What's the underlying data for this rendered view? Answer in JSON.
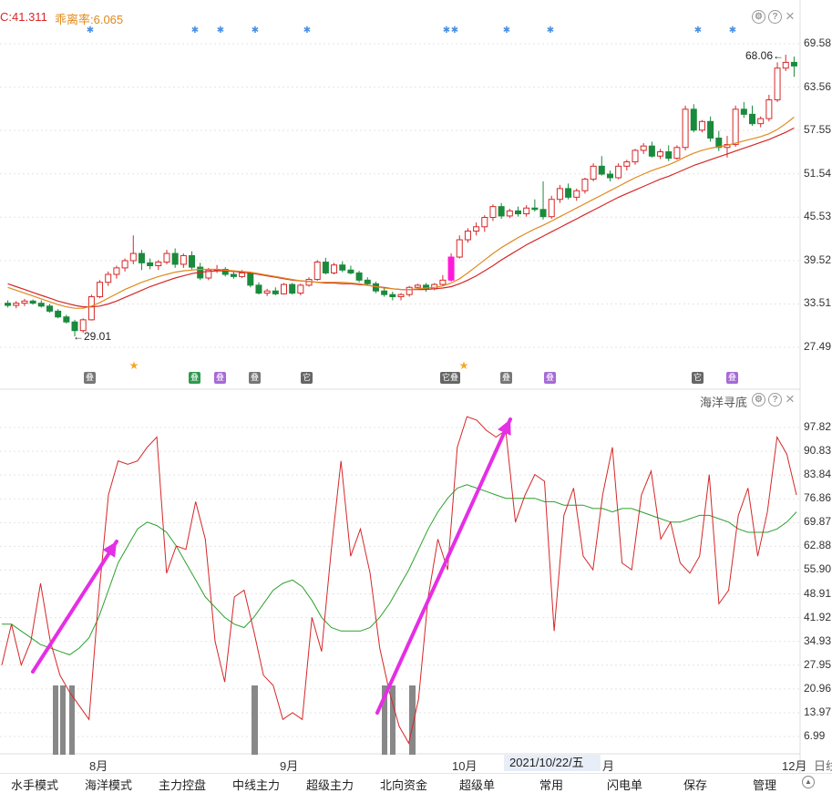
{
  "header": {
    "indicator_c": "C:41.311",
    "deviation": "乖离率:6.065",
    "lower_title": "海洋寻底"
  },
  "upper_axis": {
    "ticks": [
      "69.58",
      "63.56",
      "57.55",
      "51.54",
      "45.53",
      "39.52",
      "33.51",
      "27.49"
    ],
    "values": [
      69.58,
      63.56,
      57.55,
      51.54,
      45.53,
      39.52,
      33.51,
      27.49
    ]
  },
  "lower_axis": {
    "ticks": [
      "97.82",
      "90.83",
      "83.84",
      "76.86",
      "69.87",
      "62.88",
      "55.90",
      "48.91",
      "41.92",
      "34.93",
      "27.95",
      "20.96",
      "13.97",
      "6.99"
    ],
    "values": [
      97.82,
      90.83,
      83.84,
      76.86,
      69.87,
      62.88,
      55.9,
      48.91,
      41.92,
      34.93,
      27.95,
      20.96,
      13.97,
      6.99
    ]
  },
  "x_axis": {
    "labels": [
      "8月",
      "9月",
      "10月",
      "月",
      "12月",
      "日线"
    ],
    "current_date": "2021/10/22/五"
  },
  "annotations": {
    "high": "68.06",
    "low": "29.01",
    "high_arrow": "←",
    "low_arrow": "←"
  },
  "event_badges": [
    {
      "text": "叠",
      "color": "#777777"
    },
    {
      "text": "叠",
      "color": "#2e9a4f"
    },
    {
      "text": "叠",
      "color": "#a66ad6"
    },
    {
      "text": "叠",
      "color": "#777777"
    },
    {
      "text": "它",
      "color": "#666666"
    },
    {
      "text": "它叠",
      "color": "#666666"
    },
    {
      "text": "叠",
      "color": "#777777"
    },
    {
      "text": "叠",
      "color": "#a66ad6"
    },
    {
      "text": "它",
      "color": "#666666"
    },
    {
      "text": "叠",
      "color": "#a66ad6"
    }
  ],
  "tabs": [
    "水手模式",
    "海洋模式",
    "主力控盘",
    "中线主力",
    "超级主力",
    "北向资金",
    "超级单",
    "常用",
    "闪电单",
    "保存",
    "管理"
  ],
  "icons": {
    "settings": "gear-icon",
    "help": "help-icon",
    "close": "close-icon",
    "star": "star-icon",
    "snowflake": "snowflake-icon"
  },
  "colors": {
    "up": "#d62728",
    "down": "#1a8a3c",
    "ma_fast": "#e08a1e",
    "ma_slow": "#d62728",
    "osc": "#d62728",
    "osc_ma": "#2ca02c",
    "arrow": "#e52ee5",
    "bars": "#888888"
  },
  "chart_data": [
    {
      "type": "candlestick",
      "y_range": [
        27.49,
        69.58
      ],
      "candles": [
        [
          33.6,
          34.0,
          33.0,
          33.3
        ],
        [
          33.3,
          33.9,
          32.9,
          33.6
        ],
        [
          33.6,
          34.2,
          33.2,
          33.9
        ],
        [
          33.9,
          34.1,
          33.4,
          33.6
        ],
        [
          33.6,
          34.0,
          33.0,
          33.2
        ],
        [
          33.2,
          33.5,
          32.3,
          32.5
        ],
        [
          32.5,
          32.8,
          31.5,
          31.7
        ],
        [
          31.7,
          32.0,
          30.8,
          31.0
        ],
        [
          31.0,
          31.3,
          29.0,
          29.8
        ],
        [
          29.8,
          31.5,
          29.5,
          31.3
        ],
        [
          31.3,
          34.8,
          31.2,
          34.5
        ],
        [
          34.5,
          36.8,
          34.3,
          36.5
        ],
        [
          36.5,
          38.0,
          36.0,
          37.6
        ],
        [
          37.6,
          38.8,
          37.0,
          38.5
        ],
        [
          38.5,
          39.8,
          38.0,
          39.5
        ],
        [
          39.5,
          43.0,
          39.0,
          40.5
        ],
        [
          40.5,
          41.0,
          38.2,
          39.2
        ],
        [
          39.2,
          39.8,
          38.3,
          38.8
        ],
        [
          38.8,
          39.6,
          38.2,
          39.3
        ],
        [
          39.3,
          41.0,
          39.0,
          40.5
        ],
        [
          40.5,
          41.2,
          38.5,
          39.0
        ],
        [
          39.0,
          40.5,
          38.5,
          40.2
        ],
        [
          40.2,
          40.8,
          38.3,
          38.6
        ],
        [
          38.6,
          39.2,
          36.8,
          37.1
        ],
        [
          37.1,
          38.5,
          36.8,
          38.2
        ],
        [
          38.2,
          38.9,
          37.8,
          38.3
        ],
        [
          38.3,
          38.6,
          37.3,
          37.6
        ],
        [
          37.6,
          38.1,
          37.0,
          37.3
        ],
        [
          37.3,
          38.2,
          37.1,
          37.8
        ],
        [
          37.8,
          38.0,
          35.8,
          36.1
        ],
        [
          36.1,
          36.5,
          34.8,
          35.0
        ],
        [
          35.0,
          35.6,
          34.6,
          35.3
        ],
        [
          35.3,
          35.8,
          34.7,
          34.9
        ],
        [
          34.9,
          36.4,
          34.8,
          36.2
        ],
        [
          36.2,
          36.4,
          34.8,
          35.0
        ],
        [
          35.0,
          36.3,
          34.7,
          36.1
        ],
        [
          36.1,
          37.2,
          35.9,
          36.9
        ],
        [
          36.9,
          39.6,
          36.7,
          39.3
        ],
        [
          39.3,
          39.9,
          37.6,
          37.8
        ],
        [
          37.8,
          39.2,
          37.6,
          38.9
        ],
        [
          38.9,
          39.4,
          37.9,
          38.2
        ],
        [
          38.2,
          38.8,
          37.6,
          37.8
        ],
        [
          37.8,
          38.1,
          36.5,
          36.8
        ],
        [
          36.8,
          37.2,
          36.0,
          36.3
        ],
        [
          36.3,
          36.6,
          35.0,
          35.3
        ],
        [
          35.3,
          35.7,
          34.5,
          34.8
        ],
        [
          34.8,
          35.2,
          34.0,
          34.5
        ],
        [
          34.5,
          35.0,
          34.0,
          34.8
        ],
        [
          34.8,
          36.0,
          34.5,
          35.8
        ],
        [
          35.8,
          36.3,
          35.5,
          36.1
        ],
        [
          36.1,
          36.4,
          35.2,
          35.6
        ],
        [
          35.6,
          36.4,
          35.4,
          36.2
        ],
        [
          36.2,
          37.5,
          36.0,
          36.8
        ],
        [
          36.8,
          40.5,
          36.6,
          40.0
        ],
        [
          40.0,
          43.0,
          39.8,
          42.4
        ],
        [
          42.4,
          44.0,
          42.0,
          43.6
        ],
        [
          43.6,
          44.8,
          43.0,
          44.2
        ],
        [
          44.2,
          45.8,
          43.5,
          45.5
        ],
        [
          45.5,
          47.3,
          45.0,
          47.0
        ],
        [
          47.0,
          47.5,
          45.3,
          45.7
        ],
        [
          45.7,
          46.7,
          45.4,
          46.4
        ],
        [
          46.4,
          47.0,
          45.6,
          46.0
        ],
        [
          46.0,
          47.2,
          45.6,
          46.8
        ],
        [
          46.8,
          48.0,
          46.3,
          46.6
        ],
        [
          46.6,
          50.5,
          45.2,
          45.6
        ],
        [
          45.6,
          48.5,
          45.3,
          48.0
        ],
        [
          48.0,
          50.0,
          47.5,
          49.5
        ],
        [
          49.5,
          50.2,
          48.0,
          48.3
        ],
        [
          48.3,
          49.5,
          47.8,
          49.2
        ],
        [
          49.2,
          51.0,
          48.8,
          50.8
        ],
        [
          50.8,
          53.0,
          50.5,
          52.6
        ],
        [
          52.6,
          54.0,
          51.3,
          51.5
        ],
        [
          51.5,
          52.0,
          50.5,
          51.0
        ],
        [
          51.0,
          53.0,
          50.8,
          52.6
        ],
        [
          52.6,
          53.5,
          52.0,
          53.2
        ],
        [
          53.2,
          55.0,
          52.8,
          54.8
        ],
        [
          54.8,
          55.8,
          54.3,
          55.4
        ],
        [
          55.4,
          56.0,
          53.8,
          54.0
        ],
        [
          54.0,
          55.0,
          53.6,
          54.6
        ],
        [
          54.6,
          55.5,
          53.3,
          53.7
        ],
        [
          53.7,
          55.5,
          53.5,
          55.2
        ],
        [
          55.2,
          61.0,
          54.8,
          60.5
        ],
        [
          60.5,
          61.2,
          57.3,
          57.6
        ],
        [
          57.6,
          59.0,
          57.3,
          58.8
        ],
        [
          58.8,
          59.5,
          56.0,
          56.5
        ],
        [
          56.5,
          57.5,
          54.7,
          55.2
        ],
        [
          55.2,
          56.8,
          53.8,
          55.6
        ],
        [
          55.6,
          61.0,
          55.3,
          60.5
        ],
        [
          60.5,
          61.5,
          59.3,
          59.8
        ],
        [
          59.8,
          61.0,
          58.2,
          58.5
        ],
        [
          58.5,
          59.5,
          58.0,
          59.2
        ],
        [
          59.2,
          62.5,
          58.8,
          61.8
        ],
        [
          61.8,
          67.0,
          61.5,
          66.2
        ],
        [
          66.2,
          68.06,
          65.8,
          67.0
        ],
        [
          67.0,
          67.8,
          65.0,
          66.5
        ]
      ],
      "ma_fast": [
        35.8,
        35.4,
        35.0,
        34.6,
        34.2,
        33.8,
        33.4,
        33.1,
        32.9,
        32.9,
        33.2,
        33.7,
        34.3,
        34.9,
        35.5,
        36.0,
        36.5,
        36.9,
        37.3,
        37.6,
        37.9,
        38.1,
        38.2,
        38.3,
        38.3,
        38.3,
        38.2,
        38.1,
        38.0,
        37.9,
        37.7,
        37.5,
        37.3,
        37.1,
        36.9,
        36.7,
        36.6,
        36.5,
        36.5,
        36.5,
        36.5,
        36.4,
        36.3,
        36.1,
        35.9,
        35.7,
        35.6,
        35.5,
        35.5,
        35.6,
        35.7,
        35.8,
        36.0,
        36.4,
        37.0,
        37.8,
        38.7,
        39.6,
        40.5,
        41.3,
        42.0,
        42.7,
        43.3,
        43.9,
        44.4,
        45.0,
        45.6,
        46.2,
        46.8,
        47.4,
        48.0,
        48.6,
        49.2,
        49.8,
        50.4,
        51.0,
        51.5,
        52.0,
        52.4,
        52.8,
        53.3,
        53.9,
        54.4,
        54.8,
        55.1,
        55.3,
        55.5,
        55.8,
        56.1,
        56.4,
        56.7,
        57.1,
        57.7,
        58.5,
        59.4
      ],
      "ma_slow": [
        36.3,
        35.9,
        35.5,
        35.1,
        34.7,
        34.3,
        33.9,
        33.6,
        33.3,
        33.1,
        33.1,
        33.2,
        33.5,
        33.9,
        34.4,
        34.9,
        35.4,
        35.9,
        36.3,
        36.7,
        37.1,
        37.4,
        37.7,
        37.9,
        38.0,
        38.1,
        38.1,
        38.0,
        37.9,
        37.8,
        37.6,
        37.4,
        37.2,
        37.0,
        36.8,
        36.7,
        36.6,
        36.5,
        36.4,
        36.4,
        36.3,
        36.3,
        36.2,
        36.1,
        35.9,
        35.8,
        35.6,
        35.5,
        35.5,
        35.5,
        35.5,
        35.6,
        35.7,
        35.9,
        36.3,
        36.8,
        37.4,
        38.1,
        38.8,
        39.6,
        40.3,
        41.0,
        41.7,
        42.3,
        42.9,
        43.5,
        44.1,
        44.7,
        45.3,
        45.9,
        46.5,
        47.1,
        47.7,
        48.3,
        48.8,
        49.3,
        49.8,
        50.3,
        50.8,
        51.2,
        51.7,
        52.2,
        52.7,
        53.1,
        53.5,
        53.9,
        54.3,
        54.7,
        55.1,
        55.5,
        55.9,
        56.3,
        56.8,
        57.3,
        57.9
      ]
    },
    {
      "type": "line",
      "y_range": [
        0,
        105
      ],
      "series": [
        {
          "values": [
            28,
            40,
            28,
            35,
            52,
            35,
            25,
            20,
            16,
            12,
            48,
            78,
            88,
            87,
            88,
            92,
            95,
            55,
            63,
            62,
            76,
            65,
            35,
            23,
            48,
            50,
            38,
            25,
            22,
            12,
            14,
            12,
            42,
            32,
            62,
            88,
            60,
            68,
            55,
            33,
            20,
            10,
            5,
            18,
            48,
            65,
            56,
            92,
            101,
            100,
            97,
            95,
            97,
            70,
            78,
            84,
            82,
            38,
            72,
            80,
            60,
            56,
            78,
            92,
            58,
            56,
            78,
            85,
            65,
            70,
            58,
            55,
            60,
            84,
            46,
            50,
            72,
            80,
            60,
            73,
            95,
            90,
            78
          ]
        },
        {
          "values": [
            40,
            40,
            38,
            36,
            34,
            33,
            32,
            31,
            33,
            36,
            42,
            50,
            58,
            63,
            68,
            70,
            69,
            67,
            63,
            58,
            53,
            48,
            45,
            42,
            40,
            39,
            42,
            46,
            50,
            52,
            53,
            51,
            47,
            42,
            39,
            38,
            38,
            38,
            39,
            42,
            46,
            51,
            56,
            62,
            68,
            73,
            77,
            80,
            81,
            80,
            79,
            78,
            77,
            77,
            77,
            77,
            76,
            76,
            75,
            75,
            75,
            74,
            74,
            73,
            74,
            74,
            73,
            72,
            71,
            70,
            70,
            71,
            72,
            72,
            71,
            70,
            68,
            67,
            67,
            67,
            68,
            70,
            73
          ]
        }
      ],
      "bars": [
        {
          "i": 0,
          "h": 20
        },
        {
          "i": 1,
          "h": 20
        },
        {
          "i": 2,
          "h": 20
        },
        {
          "i": 3,
          "h": 20
        },
        {
          "i": 4,
          "h": 20
        },
        {
          "i": 5,
          "h": 20
        },
        {
          "i": 6,
          "h": 20
        }
      ]
    }
  ]
}
